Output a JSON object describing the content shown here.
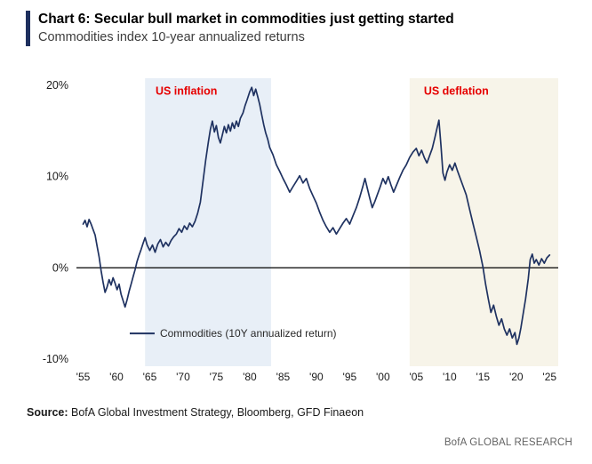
{
  "header": {
    "title": "Chart 6: Secular bull market in commodities just getting started",
    "subtitle": "Commodities index 10-year annualized returns"
  },
  "footer": {
    "source_label": "Source:",
    "source_text": " BofA Global Investment Strategy, Bloomberg, GFD Finaeon",
    "brand": "BofA GLOBAL RESEARCH"
  },
  "colors": {
    "accent_navy": "#1e2f5e",
    "line_navy": "#1f3261",
    "annotation_red": "#e60000",
    "inflation_shade": "#e8eff7",
    "deflation_shade": "#f7f4e9",
    "zero_axis": "#000000"
  },
  "chart_data": {
    "type": "line",
    "title": "Commodities index 10-year annualized returns",
    "xlim": [
      1954,
      2026.3
    ],
    "ylim": [
      -10.8,
      20.8
    ],
    "grid": false,
    "line_color": "#1f3261",
    "y_ticks": [
      {
        "v": 20,
        "label": "20%"
      },
      {
        "v": 10,
        "label": "10%"
      },
      {
        "v": 0,
        "label": "0%"
      },
      {
        "v": -10,
        "label": "-10%"
      }
    ],
    "x_ticks": [
      {
        "v": 1955,
        "label": "'55"
      },
      {
        "v": 1960,
        "label": "'60"
      },
      {
        "v": 1965,
        "label": "'65"
      },
      {
        "v": 1970,
        "label": "'70"
      },
      {
        "v": 1975,
        "label": "'75"
      },
      {
        "v": 1980,
        "label": "'80"
      },
      {
        "v": 1985,
        "label": "'85"
      },
      {
        "v": 1990,
        "label": "'90"
      },
      {
        "v": 1995,
        "label": "'95"
      },
      {
        "v": 2000,
        "label": "'00"
      },
      {
        "v": 2005,
        "label": "'05"
      },
      {
        "v": 2010,
        "label": "'10"
      },
      {
        "v": 2015,
        "label": "'15"
      },
      {
        "v": 2020,
        "label": "'20"
      },
      {
        "v": 2025,
        "label": "'25"
      }
    ],
    "regions": [
      {
        "name": "us-inflation-shading",
        "x0": 1964.3,
        "x1": 1983.2,
        "color": "#e8eff7"
      },
      {
        "name": "us-deflation-shading",
        "x0": 2004.0,
        "x1": 2026.3,
        "color": "#f7f4e9"
      }
    ],
    "annotations": [
      {
        "name": "us-inflation-label",
        "text": "US inflation",
        "x": 1970.5,
        "y": 19,
        "color": "#e60000"
      },
      {
        "name": "us-deflation-label",
        "text": "US deflation",
        "x": 2011,
        "y": 19,
        "color": "#e60000"
      }
    ],
    "legend": {
      "text": "Commodities (10Y annualized return)",
      "x": 1962,
      "y": -7.2,
      "position": "bottom-left-inside"
    },
    "series": [
      {
        "name": "Commodities (10Y annualized return)",
        "points": [
          [
            1955,
            4.8
          ],
          [
            1955.3,
            5.2
          ],
          [
            1955.6,
            4.5
          ],
          [
            1955.9,
            5.3
          ],
          [
            1956.2,
            4.8
          ],
          [
            1956.5,
            4.2
          ],
          [
            1956.8,
            3.6
          ],
          [
            1957.1,
            2.4
          ],
          [
            1957.4,
            1.2
          ],
          [
            1957.7,
            -0.3
          ],
          [
            1958,
            -1.6
          ],
          [
            1958.3,
            -2.7
          ],
          [
            1958.6,
            -2.1
          ],
          [
            1958.9,
            -1.3
          ],
          [
            1959.2,
            -1.9
          ],
          [
            1959.5,
            -1.1
          ],
          [
            1959.8,
            -1.7
          ],
          [
            1960.1,
            -2.4
          ],
          [
            1960.4,
            -1.8
          ],
          [
            1960.7,
            -2.9
          ],
          [
            1961,
            -3.6
          ],
          [
            1961.3,
            -4.3
          ],
          [
            1961.6,
            -3.5
          ],
          [
            1961.9,
            -2.6
          ],
          [
            1962.2,
            -1.8
          ],
          [
            1962.5,
            -1.0
          ],
          [
            1962.8,
            -0.2
          ],
          [
            1963.1,
            0.7
          ],
          [
            1963.4,
            1.4
          ],
          [
            1963.7,
            2.0
          ],
          [
            1964,
            2.7
          ],
          [
            1964.3,
            3.3
          ],
          [
            1964.6,
            2.5
          ],
          [
            1965,
            1.9
          ],
          [
            1965.4,
            2.5
          ],
          [
            1965.8,
            1.7
          ],
          [
            1966.2,
            2.6
          ],
          [
            1966.6,
            3.1
          ],
          [
            1967,
            2.3
          ],
          [
            1967.4,
            2.8
          ],
          [
            1967.8,
            2.4
          ],
          [
            1968.2,
            3.0
          ],
          [
            1968.6,
            3.4
          ],
          [
            1969,
            3.7
          ],
          [
            1969.4,
            4.3
          ],
          [
            1969.8,
            3.9
          ],
          [
            1970.2,
            4.6
          ],
          [
            1970.6,
            4.2
          ],
          [
            1971,
            4.9
          ],
          [
            1971.4,
            4.5
          ],
          [
            1971.8,
            5.1
          ],
          [
            1972.2,
            6.0
          ],
          [
            1972.6,
            7.2
          ],
          [
            1973,
            9.5
          ],
          [
            1973.4,
            11.8
          ],
          [
            1973.8,
            13.8
          ],
          [
            1974.1,
            15.2
          ],
          [
            1974.4,
            16.1
          ],
          [
            1974.7,
            14.9
          ],
          [
            1975,
            15.6
          ],
          [
            1975.3,
            14.3
          ],
          [
            1975.6,
            13.7
          ],
          [
            1975.9,
            14.6
          ],
          [
            1976.2,
            15.5
          ],
          [
            1976.5,
            14.8
          ],
          [
            1976.8,
            15.7
          ],
          [
            1977.1,
            15.0
          ],
          [
            1977.4,
            15.9
          ],
          [
            1977.7,
            15.3
          ],
          [
            1978,
            16.1
          ],
          [
            1978.3,
            15.5
          ],
          [
            1978.6,
            16.4
          ],
          [
            1979,
            17.0
          ],
          [
            1979.3,
            17.8
          ],
          [
            1979.6,
            18.4
          ],
          [
            1980,
            19.3
          ],
          [
            1980.3,
            19.8
          ],
          [
            1980.6,
            18.9
          ],
          [
            1980.9,
            19.6
          ],
          [
            1981.2,
            18.8
          ],
          [
            1981.5,
            17.9
          ],
          [
            1981.8,
            16.8
          ],
          [
            1982.1,
            15.7
          ],
          [
            1982.4,
            14.8
          ],
          [
            1982.7,
            14.1
          ],
          [
            1983,
            13.2
          ],
          [
            1983.5,
            12.4
          ],
          [
            1984,
            11.3
          ],
          [
            1984.5,
            10.6
          ],
          [
            1985,
            9.8
          ],
          [
            1985.5,
            9.1
          ],
          [
            1986,
            8.3
          ],
          [
            1986.5,
            8.9
          ],
          [
            1987,
            9.5
          ],
          [
            1987.5,
            10.1
          ],
          [
            1988,
            9.3
          ],
          [
            1988.5,
            9.8
          ],
          [
            1989,
            8.7
          ],
          [
            1989.5,
            7.9
          ],
          [
            1990,
            7.1
          ],
          [
            1990.5,
            6.1
          ],
          [
            1991,
            5.2
          ],
          [
            1991.5,
            4.5
          ],
          [
            1992,
            3.9
          ],
          [
            1992.5,
            4.4
          ],
          [
            1993,
            3.7
          ],
          [
            1993.5,
            4.3
          ],
          [
            1994,
            4.9
          ],
          [
            1994.5,
            5.4
          ],
          [
            1995,
            4.8
          ],
          [
            1995.5,
            5.7
          ],
          [
            1996,
            6.6
          ],
          [
            1996.5,
            7.7
          ],
          [
            1997,
            9.0
          ],
          [
            1997.3,
            9.8
          ],
          [
            1997.6,
            8.9
          ],
          [
            1998,
            7.7
          ],
          [
            1998.4,
            6.6
          ],
          [
            1998.8,
            7.3
          ],
          [
            1999.2,
            8.1
          ],
          [
            1999.6,
            8.9
          ],
          [
            2000,
            9.8
          ],
          [
            2000.4,
            9.2
          ],
          [
            2000.8,
            10.0
          ],
          [
            2001.2,
            9.1
          ],
          [
            2001.6,
            8.3
          ],
          [
            2002,
            9.0
          ],
          [
            2002.5,
            9.9
          ],
          [
            2003,
            10.7
          ],
          [
            2003.5,
            11.3
          ],
          [
            2004,
            12.1
          ],
          [
            2004.5,
            12.7
          ],
          [
            2005,
            13.1
          ],
          [
            2005.4,
            12.3
          ],
          [
            2005.8,
            12.9
          ],
          [
            2006.2,
            12.1
          ],
          [
            2006.6,
            11.5
          ],
          [
            2007,
            12.3
          ],
          [
            2007.4,
            13.1
          ],
          [
            2007.8,
            14.3
          ],
          [
            2008.1,
            15.3
          ],
          [
            2008.4,
            16.2
          ],
          [
            2008.7,
            13.4
          ],
          [
            2009,
            10.4
          ],
          [
            2009.3,
            9.6
          ],
          [
            2009.6,
            10.5
          ],
          [
            2010,
            11.3
          ],
          [
            2010.4,
            10.7
          ],
          [
            2010.8,
            11.5
          ],
          [
            2011.2,
            10.6
          ],
          [
            2011.6,
            9.8
          ],
          [
            2012,
            9.0
          ],
          [
            2012.5,
            8.0
          ],
          [
            2013,
            6.4
          ],
          [
            2013.5,
            4.9
          ],
          [
            2014,
            3.4
          ],
          [
            2014.5,
            1.9
          ],
          [
            2015,
            0.1
          ],
          [
            2015.4,
            -1.8
          ],
          [
            2015.8,
            -3.4
          ],
          [
            2016.2,
            -4.9
          ],
          [
            2016.6,
            -4.1
          ],
          [
            2017,
            -5.3
          ],
          [
            2017.4,
            -6.3
          ],
          [
            2017.8,
            -5.6
          ],
          [
            2018.2,
            -6.7
          ],
          [
            2018.6,
            -7.4
          ],
          [
            2019,
            -6.7
          ],
          [
            2019.4,
            -7.7
          ],
          [
            2019.8,
            -7.1
          ],
          [
            2020.1,
            -8.4
          ],
          [
            2020.4,
            -7.7
          ],
          [
            2020.7,
            -6.6
          ],
          [
            2021,
            -5.2
          ],
          [
            2021.4,
            -3.4
          ],
          [
            2021.8,
            -1.2
          ],
          [
            2022.1,
            0.9
          ],
          [
            2022.4,
            1.5
          ],
          [
            2022.7,
            0.5
          ],
          [
            2023,
            0.9
          ],
          [
            2023.4,
            0.3
          ],
          [
            2023.8,
            1.0
          ],
          [
            2024.2,
            0.5
          ],
          [
            2024.6,
            1.1
          ],
          [
            2025,
            1.4
          ]
        ]
      }
    ]
  }
}
